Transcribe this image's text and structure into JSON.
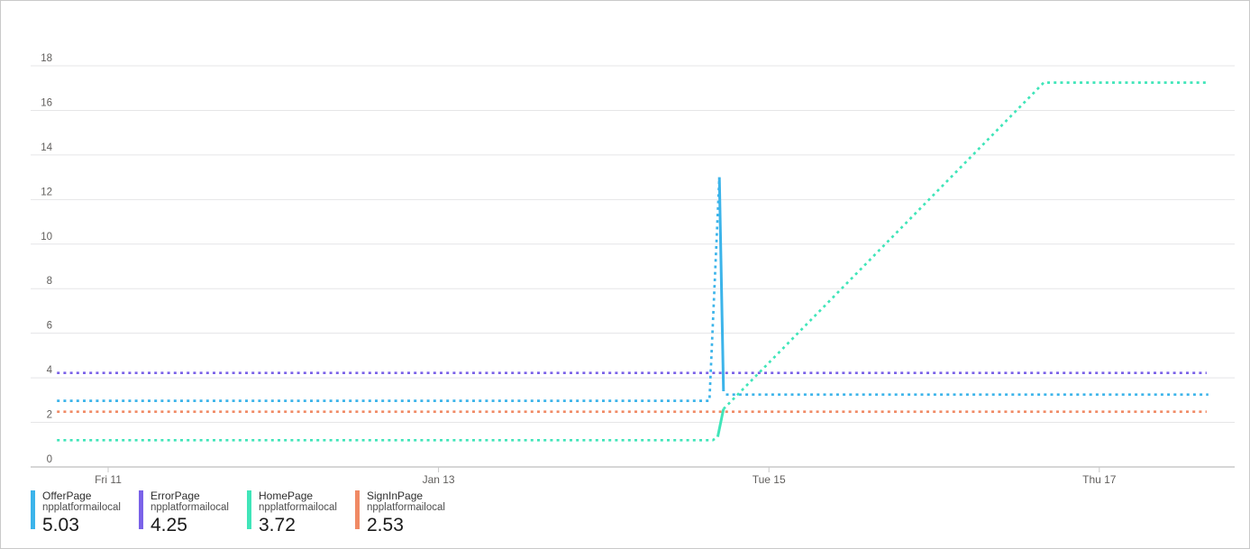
{
  "frame": {
    "background": "#ffffff",
    "border_color": "#c9c9c9"
  },
  "chart_data": {
    "type": "line",
    "title": "",
    "grid": "horizontal",
    "legend_position": "bottom-left",
    "x_axis": {
      "tick_labels": [
        "Fri 11",
        "Jan 13",
        "Tue 15",
        "Thu 17"
      ],
      "tick_positions_days": [
        0,
        2,
        4,
        6
      ],
      "range_days": [
        -0.31,
        6.82
      ],
      "label_color": "#605e5c"
    },
    "y_axis": {
      "min": 0,
      "max": 18,
      "tick_step": 2,
      "tick_labels": [
        "0",
        "2",
        "4",
        "6",
        "8",
        "10",
        "12",
        "14",
        "16",
        "18"
      ],
      "label_color": "#605e5c",
      "gridline_color": "#e5e5e7",
      "axis_line_color": "#c8c8c8"
    },
    "series": [
      {
        "name": "OfferPage",
        "scope": "npplatformailocal",
        "legend_value": "5.03",
        "color": "#3cb4ea",
        "segments": [
          {
            "style": "dotted",
            "points": [
              [
                -0.31,
                2.97
              ],
              [
                3.64,
                2.97
              ],
              [
                3.7,
                13.0
              ]
            ]
          },
          {
            "style": "solid",
            "points": [
              [
                3.7,
                13.0
              ],
              [
                3.725,
                3.4
              ]
            ]
          },
          {
            "style": "dotted",
            "points": [
              [
                3.74,
                3.25
              ],
              [
                6.66,
                3.25
              ]
            ]
          }
        ]
      },
      {
        "name": "ErrorPage",
        "scope": "npplatformailocal",
        "legend_value": "4.25",
        "color": "#7a62e8",
        "segments": [
          {
            "style": "dotted",
            "points": [
              [
                -0.31,
                4.22
              ],
              [
                6.65,
                4.22
              ]
            ]
          }
        ]
      },
      {
        "name": "HomePage",
        "scope": "npplatformailocal",
        "legend_value": "3.72",
        "color": "#40e5b9",
        "segments": [
          {
            "style": "dotted",
            "points": [
              [
                -0.31,
                1.2
              ],
              [
                3.66,
                1.2
              ],
              [
                3.69,
                1.35
              ]
            ]
          },
          {
            "style": "solid",
            "points": [
              [
                3.69,
                1.35
              ],
              [
                3.725,
                2.6
              ]
            ]
          },
          {
            "style": "dotted",
            "points": [
              [
                3.725,
                2.6
              ],
              [
                5.664,
                17.25
              ],
              [
                6.66,
                17.25
              ]
            ]
          }
        ]
      },
      {
        "name": "SignInPage",
        "scope": "npplatformailocal",
        "legend_value": "2.53",
        "color": "#f08a65",
        "segments": [
          {
            "style": "dotted",
            "points": [
              [
                -0.31,
                2.48
              ],
              [
                6.65,
                2.48
              ]
            ]
          }
        ]
      }
    ]
  }
}
